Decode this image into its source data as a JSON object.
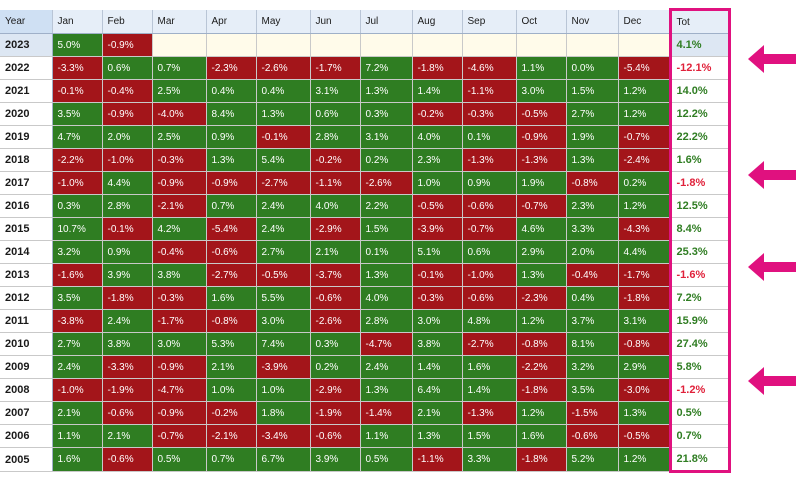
{
  "table": {
    "year_header": "Year",
    "months": [
      "Jan",
      "Feb",
      "Mar",
      "Apr",
      "May",
      "Jun",
      "Jul",
      "Aug",
      "Sep",
      "Oct",
      "Nov",
      "Dec"
    ],
    "total_header": "Tot",
    "rows": [
      {
        "year": "2023",
        "values": [
          "5.0%",
          "-0.9%",
          "",
          "",
          "",
          "",
          "",
          "",
          "",
          "",
          "",
          ""
        ],
        "total": "4.1%"
      },
      {
        "year": "2022",
        "values": [
          "-3.3%",
          "0.6%",
          "0.7%",
          "-2.3%",
          "-2.6%",
          "-1.7%",
          "7.2%",
          "-1.8%",
          "-4.6%",
          "1.1%",
          "0.0%",
          "-5.4%"
        ],
        "total": "-12.1%"
      },
      {
        "year": "2021",
        "values": [
          "-0.1%",
          "-0.4%",
          "2.5%",
          "0.4%",
          "0.4%",
          "3.1%",
          "1.3%",
          "1.4%",
          "-1.1%",
          "3.0%",
          "1.5%",
          "1.2%"
        ],
        "total": "14.0%"
      },
      {
        "year": "2020",
        "values": [
          "3.5%",
          "-0.9%",
          "-4.0%",
          "8.4%",
          "1.3%",
          "0.6%",
          "0.3%",
          "-0.2%",
          "-0.3%",
          "-0.5%",
          "2.7%",
          "1.2%"
        ],
        "total": "12.2%"
      },
      {
        "year": "2019",
        "values": [
          "4.7%",
          "2.0%",
          "2.5%",
          "0.9%",
          "-0.1%",
          "2.8%",
          "3.1%",
          "4.0%",
          "0.1%",
          "-0.9%",
          "1.9%",
          "-0.7%"
        ],
        "total": "22.2%"
      },
      {
        "year": "2018",
        "values": [
          "-2.2%",
          "-1.0%",
          "-0.3%",
          "1.3%",
          "5.4%",
          "-0.2%",
          "0.2%",
          "2.3%",
          "-1.3%",
          "-1.3%",
          "1.3%",
          "-2.4%"
        ],
        "total": "1.6%"
      },
      {
        "year": "2017",
        "values": [
          "-1.0%",
          "4.4%",
          "-0.9%",
          "-0.9%",
          "-2.7%",
          "-1.1%",
          "-2.6%",
          "1.0%",
          "0.9%",
          "1.9%",
          "-0.8%",
          "0.2%"
        ],
        "total": "-1.8%"
      },
      {
        "year": "2016",
        "values": [
          "0.3%",
          "2.8%",
          "-2.1%",
          "0.7%",
          "2.4%",
          "4.0%",
          "2.2%",
          "-0.5%",
          "-0.6%",
          "-0.7%",
          "2.3%",
          "1.2%"
        ],
        "total": "12.5%"
      },
      {
        "year": "2015",
        "values": [
          "10.7%",
          "-0.1%",
          "4.2%",
          "-5.4%",
          "2.4%",
          "-2.9%",
          "1.5%",
          "-3.9%",
          "-0.7%",
          "4.6%",
          "3.3%",
          "-4.3%"
        ],
        "total": "8.4%"
      },
      {
        "year": "2014",
        "values": [
          "3.2%",
          "0.9%",
          "-0.4%",
          "-0.6%",
          "2.7%",
          "2.1%",
          "0.1%",
          "5.1%",
          "0.6%",
          "2.9%",
          "2.0%",
          "4.4%"
        ],
        "total": "25.3%"
      },
      {
        "year": "2013",
        "values": [
          "-1.6%",
          "3.9%",
          "3.8%",
          "-2.7%",
          "-0.5%",
          "-3.7%",
          "1.3%",
          "-0.1%",
          "-1.0%",
          "1.3%",
          "-0.4%",
          "-1.7%"
        ],
        "total": "-1.6%"
      },
      {
        "year": "2012",
        "values": [
          "3.5%",
          "-1.8%",
          "-0.3%",
          "1.6%",
          "5.5%",
          "-0.6%",
          "4.0%",
          "-0.3%",
          "-0.6%",
          "-2.3%",
          "0.4%",
          "-1.8%"
        ],
        "total": "7.2%"
      },
      {
        "year": "2011",
        "values": [
          "-3.8%",
          "2.4%",
          "-1.7%",
          "-0.8%",
          "3.0%",
          "-2.6%",
          "2.8%",
          "3.0%",
          "4.8%",
          "1.2%",
          "3.7%",
          "3.1%"
        ],
        "total": "15.9%"
      },
      {
        "year": "2010",
        "values": [
          "2.7%",
          "3.8%",
          "3.0%",
          "5.3%",
          "7.4%",
          "0.3%",
          "-4.7%",
          "3.8%",
          "-2.7%",
          "-0.8%",
          "8.1%",
          "-0.8%"
        ],
        "total": "27.4%"
      },
      {
        "year": "2009",
        "values": [
          "2.4%",
          "-3.3%",
          "-0.9%",
          "2.1%",
          "-3.9%",
          "0.2%",
          "2.4%",
          "1.4%",
          "1.6%",
          "-2.2%",
          "3.2%",
          "2.9%"
        ],
        "total": "5.8%"
      },
      {
        "year": "2008",
        "values": [
          "-1.0%",
          "-1.9%",
          "-4.7%",
          "1.0%",
          "1.0%",
          "-2.9%",
          "1.3%",
          "6.4%",
          "1.4%",
          "-1.8%",
          "3.5%",
          "-3.0%"
        ],
        "total": "-1.2%"
      },
      {
        "year": "2007",
        "values": [
          "2.1%",
          "-0.6%",
          "-0.9%",
          "-0.2%",
          "1.8%",
          "-1.9%",
          "-1.4%",
          "2.1%",
          "-1.3%",
          "1.2%",
          "-1.5%",
          "1.3%"
        ],
        "total": "0.5%"
      },
      {
        "year": "2006",
        "values": [
          "1.1%",
          "2.1%",
          "-0.7%",
          "-2.1%",
          "-3.4%",
          "-0.6%",
          "1.1%",
          "1.3%",
          "1.5%",
          "1.6%",
          "-0.6%",
          "-0.5%"
        ],
        "total": "0.7%"
      },
      {
        "year": "2005",
        "values": [
          "1.6%",
          "-0.6%",
          "0.5%",
          "0.7%",
          "6.7%",
          "3.9%",
          "0.5%",
          "-1.1%",
          "3.3%",
          "-1.8%",
          "5.2%",
          "1.2%"
        ],
        "total": "21.8%"
      }
    ]
  },
  "arrows": [
    {
      "icon": "arrow-left-icon",
      "points_to_year": "2022"
    },
    {
      "icon": "arrow-left-icon",
      "points_to_year": "2017"
    },
    {
      "icon": "arrow-left-icon",
      "points_to_year": "2013"
    },
    {
      "icon": "arrow-left-icon",
      "points_to_year": "2008"
    }
  ],
  "colors": {
    "positive_cell": "#2f7d22",
    "negative_cell": "#a3151a",
    "empty_cell": "#fffbea",
    "highlight": "#e0117f",
    "header_bg": "#e6eef8"
  }
}
